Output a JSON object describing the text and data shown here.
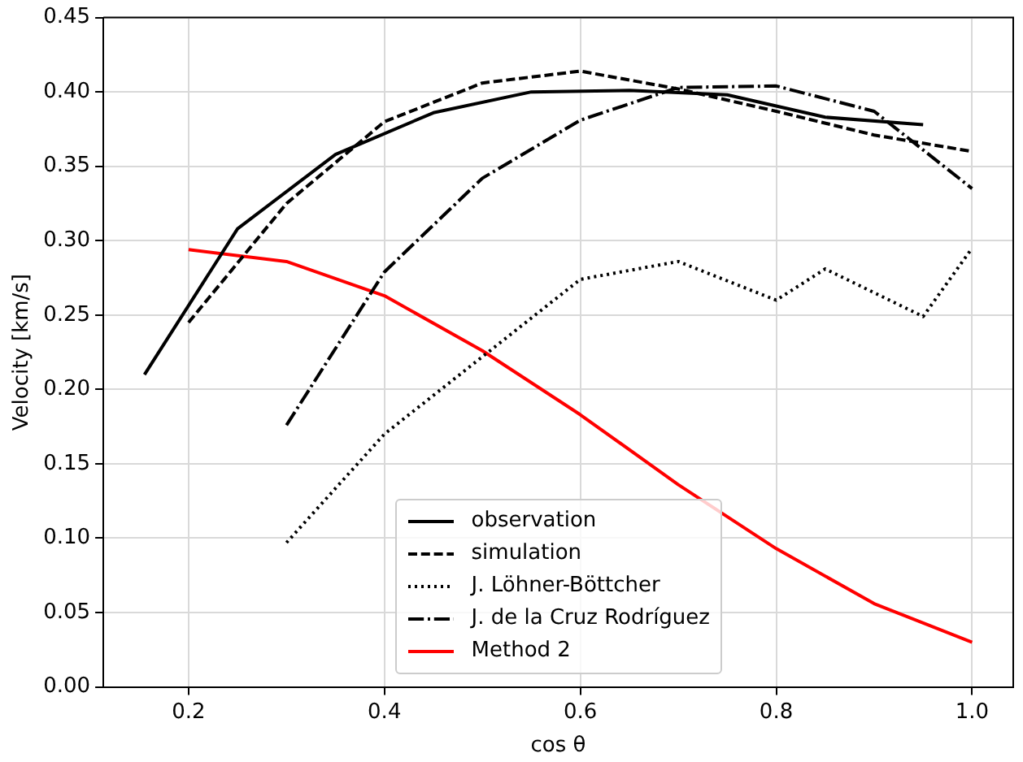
{
  "chart_data": {
    "type": "line",
    "xlabel": "cos θ",
    "ylabel": "Velocity [km/s]",
    "xlim": [
      0.113,
      1.042
    ],
    "ylim": [
      0,
      0.45
    ],
    "xticks": [
      0.2,
      0.4,
      0.6,
      0.8,
      {
        "value": 1.0,
        "label": "1.0"
      }
    ],
    "yticks": [
      {
        "value": 0,
        "label": "0.00"
      },
      {
        "value": 0.05,
        "label": "0.05"
      },
      {
        "value": 0.1,
        "label": "0.10"
      },
      {
        "value": 0.15,
        "label": "0.15"
      },
      {
        "value": 0.2,
        "label": "0.20"
      },
      {
        "value": 0.25,
        "label": "0.25"
      },
      {
        "value": 0.3,
        "label": "0.30"
      },
      {
        "value": 0.35,
        "label": "0.35"
      },
      {
        "value": 0.4,
        "label": "0.40"
      },
      {
        "value": 0.45,
        "label": "0.45"
      }
    ],
    "grid": true,
    "legend": "bottom",
    "marker": "none",
    "series": [
      {
        "name": "observation",
        "color": "#000000",
        "line_style": "solid",
        "x": [
          0.155,
          0.25,
          0.35,
          0.45,
          0.55,
          0.65,
          0.75,
          0.85,
          0.95
        ],
        "values": [
          0.21,
          0.308,
          0.358,
          0.386,
          0.4,
          0.401,
          0.398,
          0.383,
          0.378
        ]
      },
      {
        "name": "simulation",
        "color": "#000000",
        "line_style": "dashed",
        "x": [
          0.2,
          0.3,
          0.4,
          0.5,
          0.6,
          0.7,
          0.8,
          0.9,
          1.0
        ],
        "values": [
          0.245,
          0.325,
          0.38,
          0.406,
          0.414,
          0.402,
          0.387,
          0.371,
          0.36
        ]
      },
      {
        "name": "J. Löhner-Böttcher",
        "color": "#000000",
        "line_style": "dotted",
        "x": [
          0.3,
          0.4,
          0.5,
          0.6,
          0.7,
          0.8,
          0.85,
          0.95,
          1.0
        ],
        "values": [
          0.097,
          0.17,
          0.222,
          0.274,
          0.286,
          0.26,
          0.281,
          0.249,
          0.295
        ]
      },
      {
        "name": "J. de la Cruz Rodríguez",
        "color": "#000000",
        "line_style": "dashdot",
        "x": [
          0.3,
          0.4,
          0.5,
          0.6,
          0.7,
          0.8,
          0.9,
          1.0
        ],
        "values": [
          0.176,
          0.279,
          0.342,
          0.381,
          0.403,
          0.404,
          0.387,
          0.335
        ]
      },
      {
        "name": "Method 2",
        "color": "#ff0000",
        "line_style": "solid",
        "x": [
          0.2,
          0.3,
          0.4,
          0.5,
          0.6,
          0.7,
          0.8,
          0.9,
          1.0
        ],
        "values": [
          0.294,
          0.286,
          0.263,
          0.226,
          0.183,
          0.136,
          0.093,
          0.056,
          0.03
        ]
      }
    ]
  }
}
